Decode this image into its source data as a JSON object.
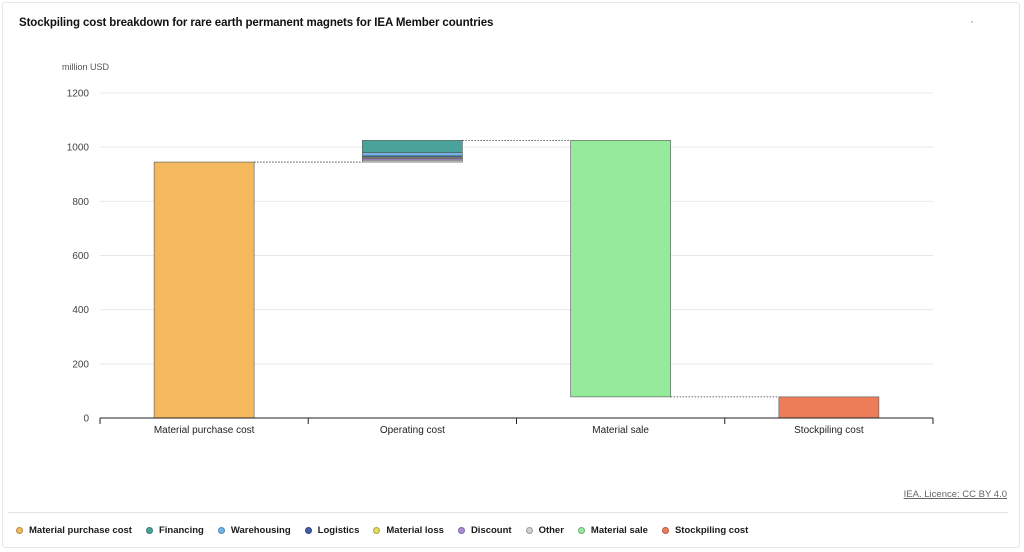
{
  "title": "Stockpiling cost breakdown for rare earth permanent magnets for IEA Member countries",
  "unit_label": "million USD",
  "source_label": "IEA. Licence: CC BY 4.0",
  "chart_data": {
    "type": "bar",
    "subtype": "waterfall",
    "title": "Stockpiling cost breakdown for rare earth permanent magnets for IEA Member countries",
    "ylabel": "million USD",
    "ylim": [
      0,
      1200
    ],
    "yticks": [
      0,
      200,
      400,
      600,
      800,
      1000,
      1200
    ],
    "grid": true,
    "legend_position": "bottom",
    "categories": [
      "Material purchase cost",
      "Operating cost",
      "Material sale",
      "Stockpiling cost"
    ],
    "segments": [
      {
        "category": "Material purchase cost",
        "series": "Material purchase cost",
        "start": 0,
        "end": 945,
        "color": "#f4b95c"
      },
      {
        "category": "Operating cost",
        "series": "Financing",
        "start": 980,
        "end": 1025,
        "color": "#4aa39a"
      },
      {
        "category": "Operating cost",
        "series": "Warehousing",
        "start": 968,
        "end": 980,
        "color": "#6fb6e6"
      },
      {
        "category": "Operating cost",
        "series": "Logistics",
        "start": 962,
        "end": 968,
        "color": "#3f5fa8"
      },
      {
        "category": "Operating cost",
        "series": "Material loss",
        "start": 958,
        "end": 962,
        "color": "#e3de5c"
      },
      {
        "category": "Operating cost",
        "series": "Discount",
        "start": 952,
        "end": 958,
        "color": "#a98bd6"
      },
      {
        "category": "Operating cost",
        "series": "Other",
        "start": 945,
        "end": 952,
        "color": "#d0d0d0"
      },
      {
        "category": "Material sale",
        "series": "Material sale",
        "start": 78,
        "end": 1025,
        "color": "#95ea9b"
      },
      {
        "category": "Stockpiling cost",
        "series": "Stockpiling cost",
        "start": 0,
        "end": 78,
        "color": "#ed7d59"
      }
    ],
    "connectors": [
      {
        "from": "Material purchase cost",
        "to": "Operating cost",
        "value": 945
      },
      {
        "from": "Operating cost",
        "to": "Material sale",
        "value": 1025
      },
      {
        "from": "Material sale",
        "to": "Stockpiling cost",
        "value": 78
      }
    ]
  },
  "legend": [
    {
      "label": "Material purchase cost",
      "color": "#f4b95c"
    },
    {
      "label": "Financing",
      "color": "#4aa39a"
    },
    {
      "label": "Warehousing",
      "color": "#6fb6e6"
    },
    {
      "label": "Logistics",
      "color": "#3f5fa8"
    },
    {
      "label": "Material loss",
      "color": "#e3de5c"
    },
    {
      "label": "Discount",
      "color": "#a98bd6"
    },
    {
      "label": "Other",
      "color": "#d0d0d0"
    },
    {
      "label": "Material sale",
      "color": "#95ea9b"
    },
    {
      "label": "Stockpiling cost",
      "color": "#ed7d59"
    }
  ]
}
